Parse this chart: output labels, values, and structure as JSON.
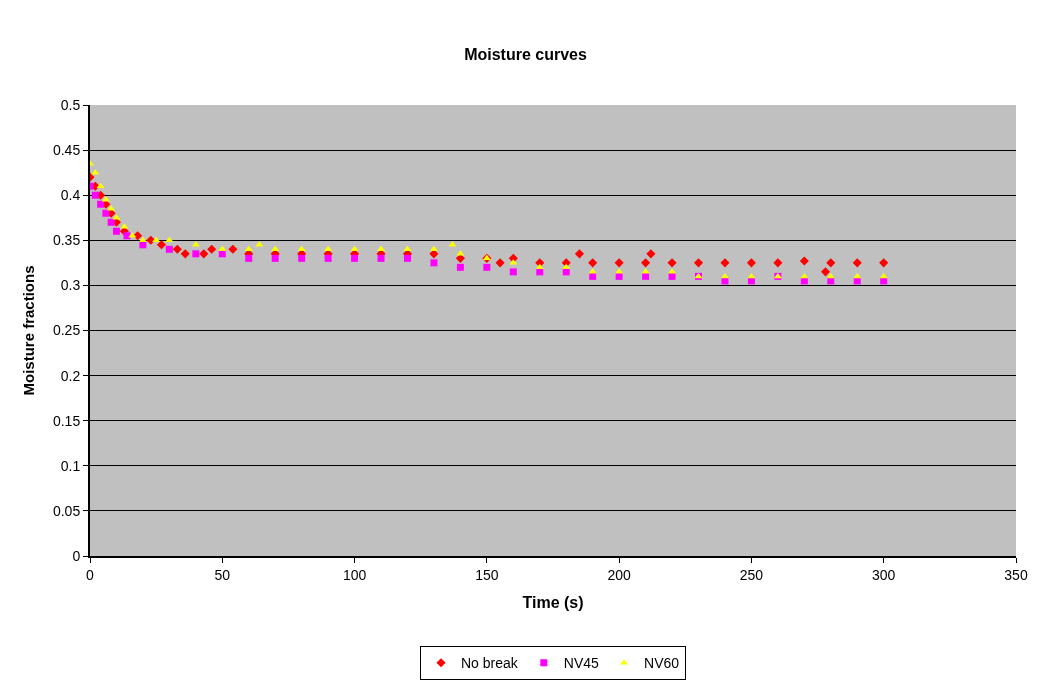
{
  "chart_data": {
    "type": "scatter",
    "title": "Moisture curves",
    "xlabel": "Time (s)",
    "ylabel": "Moisture fractions",
    "xlim": [
      0,
      350
    ],
    "xticks": [
      0,
      50,
      100,
      150,
      200,
      250,
      300,
      350
    ],
    "ylim": [
      0,
      0.5
    ],
    "yticks": [
      0,
      0.05,
      0.1,
      0.15,
      0.2,
      0.25,
      0.3,
      0.35,
      0.4,
      0.45,
      0.5
    ],
    "grid": "y",
    "legend": "bottom",
    "series": [
      {
        "name": "No break",
        "color": "#ff0000",
        "marker": "diamond",
        "x": [
          0,
          2,
          4,
          6,
          8,
          10,
          13,
          18,
          23,
          27,
          33,
          36,
          43,
          46,
          54,
          60,
          70,
          80,
          90,
          100,
          110,
          120,
          130,
          140,
          150,
          155,
          160,
          170,
          180,
          185,
          190,
          200,
          210,
          212,
          220,
          230,
          240,
          250,
          260,
          270,
          278,
          280,
          290,
          300
        ],
        "values": [
          0.42,
          0.41,
          0.4,
          0.39,
          0.38,
          0.37,
          0.36,
          0.355,
          0.35,
          0.345,
          0.34,
          0.335,
          0.335,
          0.34,
          0.34,
          0.335,
          0.335,
          0.335,
          0.335,
          0.335,
          0.335,
          0.335,
          0.335,
          0.33,
          0.33,
          0.325,
          0.33,
          0.325,
          0.325,
          0.335,
          0.325,
          0.325,
          0.325,
          0.335,
          0.325,
          0.325,
          0.325,
          0.325,
          0.325,
          0.327,
          0.315,
          0.325,
          0.325,
          0.325
        ]
      },
      {
        "name": "NV45",
        "color": "#ff00ff",
        "marker": "square",
        "x": [
          0,
          2,
          4,
          6,
          8,
          10,
          14,
          20,
          30,
          40,
          50,
          60,
          70,
          80,
          90,
          100,
          110,
          120,
          130,
          140,
          150,
          160,
          170,
          180,
          190,
          200,
          210,
          220,
          230,
          240,
          250,
          260,
          270,
          280,
          290,
          300
        ],
        "values": [
          0.41,
          0.4,
          0.39,
          0.38,
          0.37,
          0.36,
          0.355,
          0.345,
          0.34,
          0.335,
          0.335,
          0.33,
          0.33,
          0.33,
          0.33,
          0.33,
          0.33,
          0.33,
          0.325,
          0.32,
          0.32,
          0.315,
          0.315,
          0.315,
          0.31,
          0.31,
          0.31,
          0.31,
          0.31,
          0.305,
          0.305,
          0.31,
          0.305,
          0.305,
          0.305,
          0.305
        ]
      },
      {
        "name": "NV60",
        "color": "#ffff00",
        "marker": "triangle",
        "x": [
          0,
          2,
          4,
          6,
          8,
          10,
          13,
          16,
          20,
          25,
          30,
          40,
          50,
          60,
          64,
          70,
          80,
          90,
          100,
          110,
          120,
          130,
          137,
          140,
          150,
          160,
          170,
          180,
          190,
          200,
          210,
          220,
          230,
          240,
          250,
          260,
          270,
          280,
          290,
          300
        ],
        "values": [
          0.435,
          0.425,
          0.41,
          0.395,
          0.385,
          0.375,
          0.365,
          0.355,
          0.35,
          0.35,
          0.35,
          0.345,
          0.34,
          0.34,
          0.345,
          0.34,
          0.34,
          0.34,
          0.34,
          0.34,
          0.34,
          0.34,
          0.345,
          0.335,
          0.33,
          0.325,
          0.32,
          0.32,
          0.315,
          0.315,
          0.315,
          0.315,
          0.31,
          0.31,
          0.31,
          0.31,
          0.31,
          0.31,
          0.31,
          0.31
        ]
      }
    ]
  }
}
